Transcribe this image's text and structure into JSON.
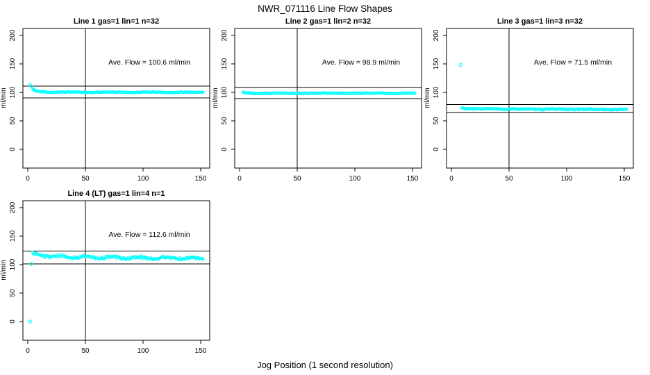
{
  "chart_data": {
    "type": "scatter",
    "title": "NWR_071116  Line Flow Shapes",
    "xlabel": "Jog Position (1 second resolution)",
    "ylabel": "ml/min",
    "x_ticks": [
      0,
      50,
      100,
      150
    ],
    "y_ticks": [
      0,
      50,
      100,
      150,
      200
    ],
    "xlim": [
      -4,
      158
    ],
    "ylim": [
      -33,
      212
    ],
    "grid": false,
    "legend": "none",
    "point_color": "#00ffff",
    "line_color": "#000000",
    "vline_x": 50,
    "panels": [
      {
        "name": "line-1",
        "title": "Line 1 gas=1 lin=1 n=32",
        "annotation": "Ave. Flow =  100.6  ml/min",
        "ave_flow": 100.6,
        "ref_lines": [
          110.7,
          90.5
        ],
        "x_start": 2,
        "x_end": 152,
        "x_step": 1,
        "profile": [
          [
            2,
            113
          ],
          [
            3,
            110.5
          ],
          [
            4,
            106.5
          ],
          [
            6,
            103
          ],
          [
            10,
            101.2
          ],
          [
            20,
            100.4
          ],
          [
            152,
            100
          ]
        ],
        "noise": 0.55,
        "wobble": {
          "amp": 0.3,
          "period": 34,
          "phase": 0.8
        },
        "outliers": [],
        "seed": 11
      },
      {
        "name": "line-2",
        "title": "Line 2 gas=1 lin=2 n=32",
        "annotation": "Ave. Flow =  98.9  ml/min",
        "ave_flow": 98.9,
        "ref_lines": [
          108.8,
          89.0
        ],
        "x_start": 3,
        "x_end": 152,
        "x_step": 1,
        "profile": [
          [
            3,
            100.2
          ],
          [
            5,
            99.2
          ],
          [
            12,
            98.6
          ],
          [
            152,
            98.4
          ]
        ],
        "noise": 0.55,
        "wobble": {
          "amp": 0.25,
          "period": 40,
          "phase": 2.1
        },
        "outliers": [],
        "seed": 22
      },
      {
        "name": "line-3",
        "title": "Line 3 gas=1 lin=3 n=32",
        "annotation": "Ave. Flow =  71.5  ml/min",
        "ave_flow": 71.5,
        "ref_lines": [
          78.7,
          64.4
        ],
        "x_start": 9,
        "x_end": 152,
        "x_step": 1,
        "profile": [
          [
            9,
            72.5
          ],
          [
            16,
            71.3
          ],
          [
            50,
            70.6
          ],
          [
            152,
            70.0
          ]
        ],
        "noise": 0.8,
        "wobble": {
          "amp": 0.35,
          "period": 30,
          "phase": 1.4
        },
        "outliers": [
          [
            8,
            148
          ]
        ],
        "seed": 33
      },
      {
        "name": "line-4-lt",
        "title": "Line 4 (LT) gas=1 lin=4 n=1",
        "annotation": "Ave. Flow =  112.6  ml/min",
        "ave_flow": 112.6,
        "ref_lines": [
          123.9,
          101.3
        ],
        "x_start": 4,
        "x_end": 152,
        "x_step": 1,
        "profile": [
          [
            4,
            119.5
          ],
          [
            8,
            117.5
          ],
          [
            20,
            114.5
          ],
          [
            45,
            113
          ],
          [
            90,
            112
          ],
          [
            152,
            110.8
          ]
        ],
        "noise": 2.0,
        "wobble": {
          "amp": 1.3,
          "period": 23,
          "phase": 0.3
        },
        "outliers": [
          [
            2,
            0
          ],
          [
            3,
            101
          ]
        ],
        "seed": 44
      }
    ]
  }
}
